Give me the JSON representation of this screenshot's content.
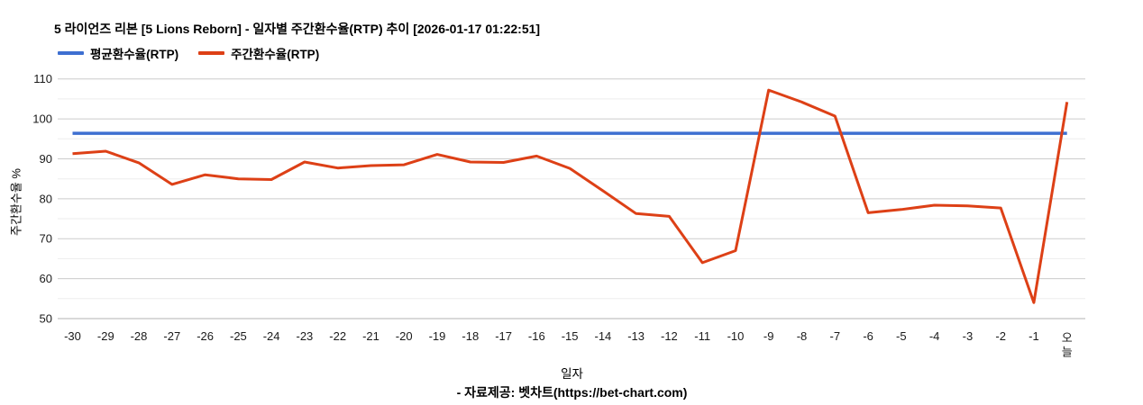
{
  "header": {
    "title": "5 라이언즈 리본 [5 Lions Reborn] - 일자별 주간환수율(RTP) 추이 [2026-01-17 01:22:51]"
  },
  "legend": {
    "items": [
      {
        "label": "평균환수율(RTP)",
        "color": "#3e6fd1"
      },
      {
        "label": "주간환수율(RTP)",
        "color": "#dd4016"
      }
    ]
  },
  "axes": {
    "x_title": "일자",
    "y_title": "주간환수율 %"
  },
  "footer": {
    "credit": "- 자료제공: 벳차트(https://bet-chart.com)"
  },
  "chart_data": {
    "type": "line",
    "title": "5 라이언즈 리본 [5 Lions Reborn] - 일자별 주간환수율(RTP) 추이 [2026-01-17 01:22:51]",
    "xlabel": "일자",
    "ylabel": "주간환수율 %",
    "ylim": [
      50,
      110
    ],
    "y_major_step": 10,
    "y_minor_step": 5,
    "grid": true,
    "legend_position": "top-left",
    "categories": [
      "-30",
      "-29",
      "-28",
      "-27",
      "-26",
      "-25",
      "-24",
      "-23",
      "-22",
      "-21",
      "-20",
      "-19",
      "-18",
      "-17",
      "-16",
      "-15",
      "-14",
      "-13",
      "-12",
      "-11",
      "-10",
      "-9",
      "-8",
      "-7",
      "-6",
      "-5",
      "-4",
      "-3",
      "-2",
      "-1",
      "오늘"
    ],
    "series": [
      {
        "name": "평균환수율(RTP)",
        "color": "#3e6fd1",
        "stroke_width": 3.5,
        "values": [
          96.4,
          96.4,
          96.4,
          96.4,
          96.4,
          96.4,
          96.4,
          96.4,
          96.4,
          96.4,
          96.4,
          96.4,
          96.4,
          96.4,
          96.4,
          96.4,
          96.4,
          96.4,
          96.4,
          96.4,
          96.4,
          96.4,
          96.4,
          96.4,
          96.4,
          96.4,
          96.4,
          96.4,
          96.4,
          96.4,
          96.4
        ]
      },
      {
        "name": "주간환수율(RTP)",
        "color": "#dd4016",
        "stroke_width": 3,
        "values": [
          91.3,
          91.9,
          89.0,
          83.6,
          86.0,
          85.0,
          84.8,
          89.2,
          87.7,
          88.3,
          88.5,
          91.1,
          89.2,
          89.1,
          90.7,
          87.6,
          82.0,
          76.3,
          75.6,
          64.0,
          67.0,
          107.2,
          104.2,
          100.7,
          76.5,
          77.3,
          78.4,
          78.2,
          77.7,
          54.0,
          104.2
        ]
      }
    ]
  }
}
